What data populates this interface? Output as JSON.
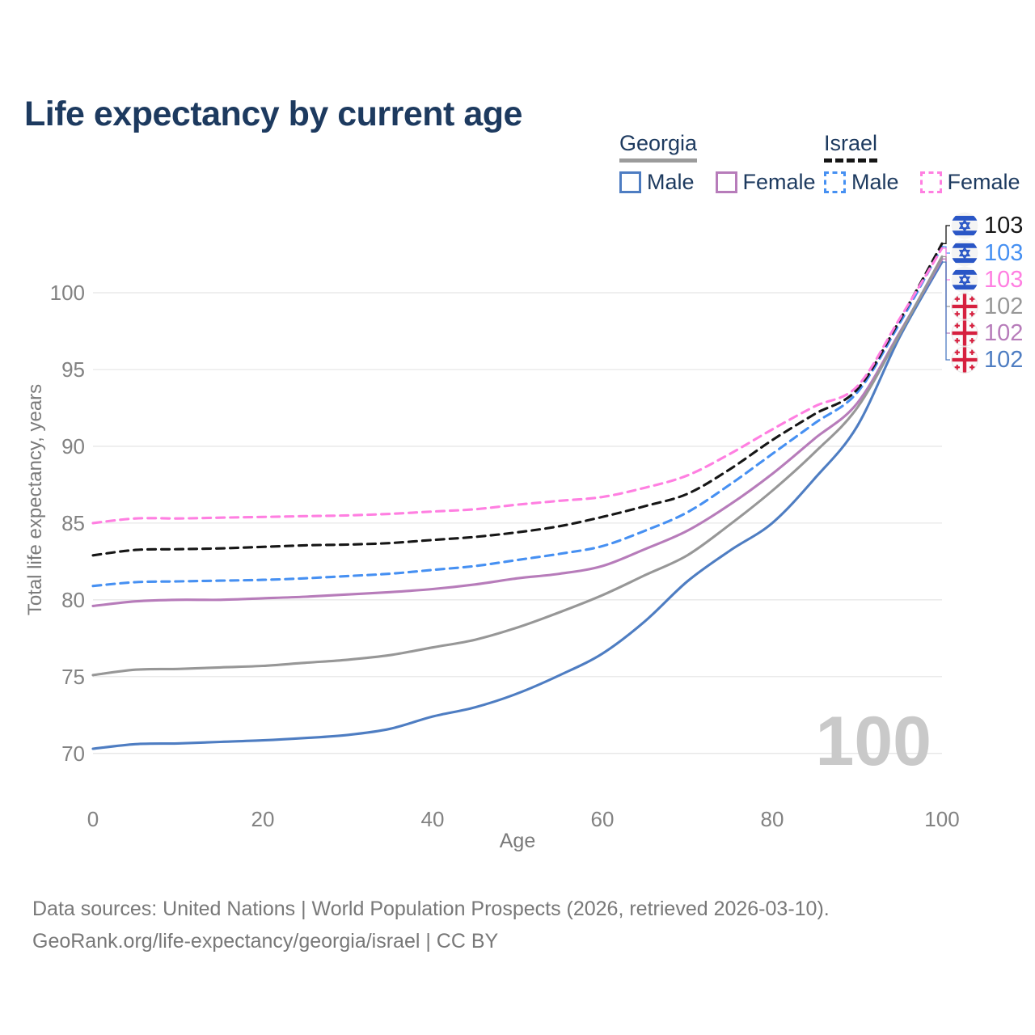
{
  "title": "Life expectancy by current age",
  "watermark": "100",
  "legend": {
    "groups": [
      {
        "title": "Georgia",
        "underline_style": "solid",
        "underline_color": "#9b9b9b",
        "items": [
          {
            "label": "Male",
            "color": "#4e7dc2",
            "dashed": false
          },
          {
            "label": "Female",
            "color": "#b77cba",
            "dashed": false
          }
        ]
      },
      {
        "title": "Israel",
        "underline_style": "dashed",
        "underline_color": "#161616",
        "items": [
          {
            "label": "Male",
            "color": "#4690f2",
            "dashed": true
          },
          {
            "label": "Female",
            "color": "#ff7fe1",
            "dashed": true
          }
        ]
      }
    ]
  },
  "footer": {
    "line1": "Data sources: United Nations | World Population Prospects (2026, retrieved 2026-03-10).",
    "line2": "GeoRank.org/life-expectancy/georgia/israel | CC BY"
  },
  "chart_data": {
    "type": "line",
    "title": "Life expectancy by current age",
    "xlabel": "Age",
    "ylabel": "Total life expectancy, years",
    "xlim": [
      0,
      100
    ],
    "ylim": [
      70,
      100
    ],
    "x_ticks": [
      0,
      20,
      40,
      60,
      80,
      100
    ],
    "y_ticks": [
      70,
      75,
      80,
      85,
      90,
      95,
      100
    ],
    "grid": true,
    "legend_position": "top-right",
    "x": [
      0,
      5,
      10,
      15,
      20,
      25,
      30,
      35,
      40,
      45,
      50,
      55,
      60,
      65,
      70,
      75,
      80,
      85,
      90,
      95,
      100
    ],
    "series": [
      {
        "name": "Israel Total",
        "country": "Israel",
        "sex": "Total",
        "flag": "israel",
        "color": "#161616",
        "dash": true,
        "end_label": "103",
        "values": [
          82.9,
          83.25,
          83.3,
          83.35,
          83.45,
          83.55,
          83.6,
          83.7,
          83.9,
          84.1,
          84.4,
          84.8,
          85.4,
          86.1,
          86.9,
          88.5,
          90.4,
          92.1,
          93.7,
          98.2,
          103.2
        ]
      },
      {
        "name": "Israel Male",
        "country": "Israel",
        "sex": "Male",
        "flag": "israel",
        "color": "#4690f2",
        "dash": true,
        "end_label": "103",
        "values": [
          80.9,
          81.15,
          81.2,
          81.25,
          81.3,
          81.4,
          81.55,
          81.7,
          81.95,
          82.2,
          82.6,
          83.0,
          83.5,
          84.5,
          85.7,
          87.5,
          89.5,
          91.5,
          93.5,
          98.0,
          103.0
        ]
      },
      {
        "name": "Israel Female",
        "country": "Israel",
        "sex": "Female",
        "flag": "israel",
        "color": "#ff7fe1",
        "dash": true,
        "end_label": "103",
        "values": [
          85.0,
          85.3,
          85.3,
          85.35,
          85.4,
          85.45,
          85.5,
          85.6,
          85.75,
          85.9,
          86.2,
          86.45,
          86.7,
          87.3,
          88.1,
          89.5,
          91.1,
          92.6,
          93.9,
          98.3,
          102.9
        ]
      },
      {
        "name": "Georgia Total",
        "country": "Georgia",
        "sex": "Total",
        "flag": "georgia",
        "color": "#979797",
        "dash": false,
        "end_label": "102",
        "values": [
          75.1,
          75.45,
          75.5,
          75.6,
          75.7,
          75.9,
          76.1,
          76.4,
          76.9,
          77.4,
          78.2,
          79.2,
          80.3,
          81.6,
          82.9,
          84.9,
          87.1,
          89.6,
          92.5,
          97.3,
          102.35
        ]
      },
      {
        "name": "Georgia Female",
        "country": "Georgia",
        "sex": "Female",
        "flag": "georgia",
        "color": "#b77cba",
        "dash": false,
        "end_label": "102",
        "values": [
          79.6,
          79.9,
          80.0,
          80.0,
          80.1,
          80.2,
          80.35,
          80.5,
          80.7,
          81.0,
          81.4,
          81.7,
          82.2,
          83.3,
          84.5,
          86.2,
          88.2,
          90.5,
          92.8,
          97.4,
          102.2
        ]
      },
      {
        "name": "Georgia Male",
        "country": "Georgia",
        "sex": "Male",
        "flag": "georgia",
        "color": "#4e7dc2",
        "dash": false,
        "end_label": "102",
        "values": [
          70.3,
          70.6,
          70.65,
          70.75,
          70.85,
          71.0,
          71.2,
          71.6,
          72.4,
          73.0,
          73.9,
          75.1,
          76.5,
          78.6,
          81.2,
          83.2,
          85.0,
          87.9,
          91.3,
          97.1,
          102.0
        ]
      }
    ]
  }
}
